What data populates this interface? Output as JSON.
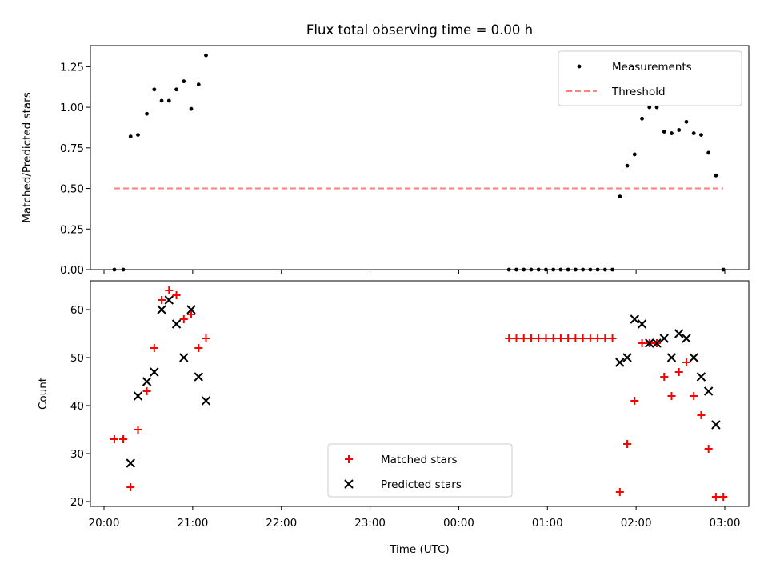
{
  "chart_data": [
    {
      "type": "scatter",
      "title": "Flux total observing time = 0.00 h",
      "ylabel": "Matched/Predicted stars",
      "xlabel": "",
      "ylim": [
        0,
        1.38
      ],
      "yticks": [
        "0.00",
        "0.25",
        "0.50",
        "0.75",
        "1.00",
        "1.25"
      ],
      "legend_position": "upper right",
      "series": [
        {
          "name": "Measurements",
          "marker": "dot",
          "color": "#000000",
          "points": [
            [
              "20:07",
              0.0
            ],
            [
              "20:13",
              0.0
            ],
            [
              "20:18",
              0.82
            ],
            [
              "20:23",
              0.83
            ],
            [
              "20:29",
              0.96
            ],
            [
              "20:34",
              1.11
            ],
            [
              "20:39",
              1.04
            ],
            [
              "20:44",
              1.04
            ],
            [
              "20:49",
              1.11
            ],
            [
              "20:54",
              1.16
            ],
            [
              "20:59",
              0.99
            ],
            [
              "21:04",
              1.14
            ],
            [
              "21:09",
              1.32
            ],
            [
              "00:34",
              0.0
            ],
            [
              "00:39",
              0.0
            ],
            [
              "00:44",
              0.0
            ],
            [
              "00:49",
              0.0
            ],
            [
              "00:54",
              0.0
            ],
            [
              "00:59",
              0.0
            ],
            [
              "01:04",
              0.0
            ],
            [
              "01:09",
              0.0
            ],
            [
              "01:14",
              0.0
            ],
            [
              "01:19",
              0.0
            ],
            [
              "01:24",
              0.0
            ],
            [
              "01:29",
              0.0
            ],
            [
              "01:34",
              0.0
            ],
            [
              "01:39",
              0.0
            ],
            [
              "01:44",
              0.0
            ],
            [
              "01:49",
              0.45
            ],
            [
              "01:54",
              0.64
            ],
            [
              "01:59",
              0.71
            ],
            [
              "02:04",
              0.93
            ],
            [
              "02:09",
              1.0
            ],
            [
              "02:14",
              1.0
            ],
            [
              "02:19",
              0.85
            ],
            [
              "02:24",
              0.84
            ],
            [
              "02:29",
              0.86
            ],
            [
              "02:34",
              0.91
            ],
            [
              "02:39",
              0.84
            ],
            [
              "02:44",
              0.83
            ],
            [
              "02:49",
              0.72
            ],
            [
              "02:54",
              0.58
            ],
            [
              "02:59",
              0.0
            ]
          ]
        },
        {
          "name": "Threshold",
          "marker": "dashed-line",
          "color": "#ff7f7f",
          "points": [
            [
              "20:07",
              0.5
            ],
            [
              "02:59",
              0.5
            ]
          ]
        }
      ]
    },
    {
      "type": "scatter",
      "title": "",
      "ylabel": "Count",
      "xlabel": "Time (UTC)",
      "ylim": [
        19,
        66
      ],
      "yticks": [
        "20",
        "30",
        "40",
        "50",
        "60"
      ],
      "xticks": [
        "20:00",
        "21:00",
        "22:00",
        "23:00",
        "00:00",
        "01:00",
        "02:00",
        "03:00"
      ],
      "legend_position": "lower center",
      "series": [
        {
          "name": "Matched stars",
          "marker": "plus",
          "color": "#ff0000",
          "points": [
            [
              "20:07",
              33
            ],
            [
              "20:13",
              33
            ],
            [
              "20:18",
              23
            ],
            [
              "20:23",
              35
            ],
            [
              "20:29",
              43
            ],
            [
              "20:34",
              52
            ],
            [
              "20:39",
              62
            ],
            [
              "20:44",
              64
            ],
            [
              "20:49",
              63
            ],
            [
              "20:54",
              58
            ],
            [
              "20:59",
              59
            ],
            [
              "21:04",
              52
            ],
            [
              "21:09",
              54
            ],
            [
              "00:34",
              54
            ],
            [
              "00:39",
              54
            ],
            [
              "00:44",
              54
            ],
            [
              "00:49",
              54
            ],
            [
              "00:54",
              54
            ],
            [
              "00:59",
              54
            ],
            [
              "01:04",
              54
            ],
            [
              "01:09",
              54
            ],
            [
              "01:14",
              54
            ],
            [
              "01:19",
              54
            ],
            [
              "01:24",
              54
            ],
            [
              "01:29",
              54
            ],
            [
              "01:34",
              54
            ],
            [
              "01:39",
              54
            ],
            [
              "01:44",
              54
            ],
            [
              "01:49",
              22
            ],
            [
              "01:54",
              32
            ],
            [
              "01:59",
              41
            ],
            [
              "02:04",
              53
            ],
            [
              "02:09",
              53
            ],
            [
              "02:14",
              53
            ],
            [
              "02:19",
              46
            ],
            [
              "02:24",
              42
            ],
            [
              "02:29",
              47
            ],
            [
              "02:34",
              49
            ],
            [
              "02:39",
              42
            ],
            [
              "02:44",
              38
            ],
            [
              "02:49",
              31
            ],
            [
              "02:54",
              21
            ],
            [
              "02:59",
              21
            ]
          ]
        },
        {
          "name": "Predicted stars",
          "marker": "x",
          "color": "#000000",
          "points": [
            [
              "20:18",
              28
            ],
            [
              "20:23",
              42
            ],
            [
              "20:29",
              45
            ],
            [
              "20:34",
              47
            ],
            [
              "20:39",
              60
            ],
            [
              "20:44",
              62
            ],
            [
              "20:49",
              57
            ],
            [
              "20:54",
              50
            ],
            [
              "20:59",
              60
            ],
            [
              "21:04",
              46
            ],
            [
              "21:09",
              41
            ],
            [
              "01:49",
              49
            ],
            [
              "01:54",
              50
            ],
            [
              "01:59",
              58
            ],
            [
              "02:04",
              57
            ],
            [
              "02:09",
              53
            ],
            [
              "02:14",
              53
            ],
            [
              "02:19",
              54
            ],
            [
              "02:24",
              50
            ],
            [
              "02:29",
              55
            ],
            [
              "02:34",
              54
            ],
            [
              "02:39",
              50
            ],
            [
              "02:44",
              46
            ],
            [
              "02:49",
              43
            ],
            [
              "02:54",
              36
            ]
          ]
        }
      ]
    }
  ]
}
